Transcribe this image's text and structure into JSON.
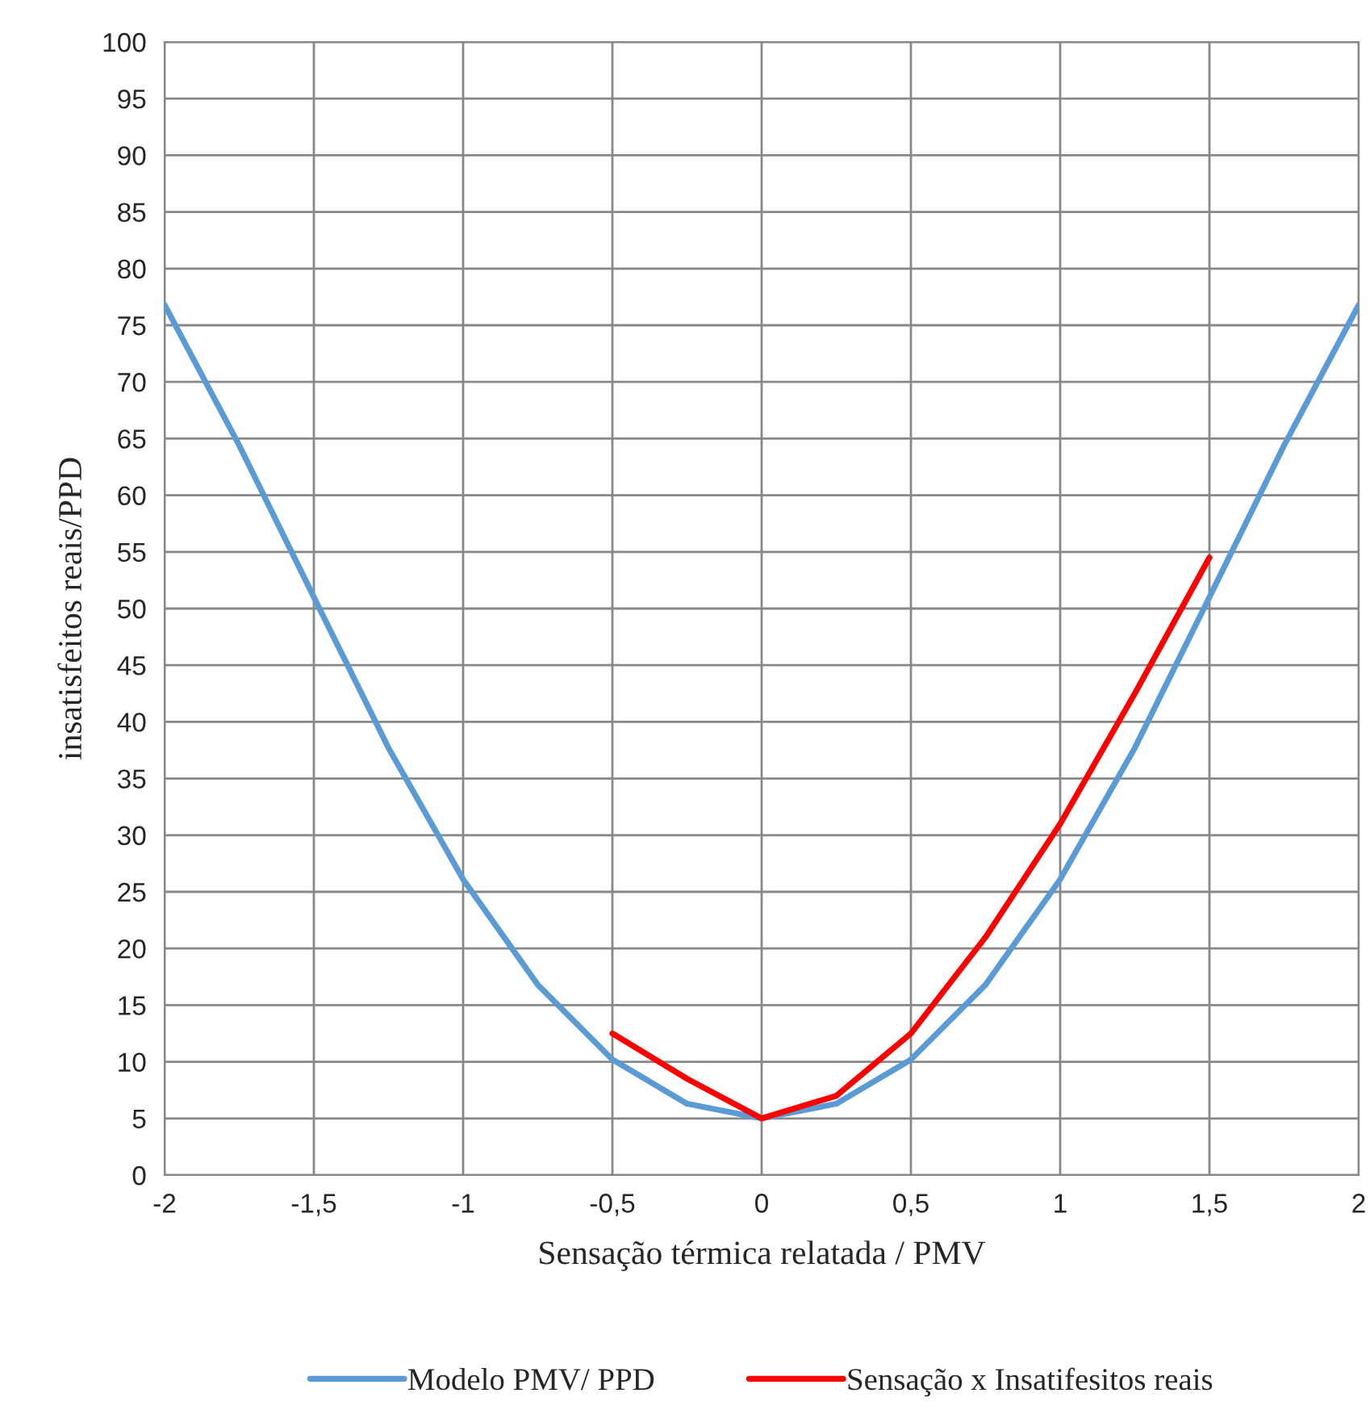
{
  "chart_data": {
    "type": "line",
    "xlabel": "Sensação térmica relatada / PMV",
    "ylabel": "insatisfeitos reais/PPD",
    "xlim": [
      -2,
      2
    ],
    "ylim": [
      0,
      100
    ],
    "xticks": [
      -2,
      {
        "value": -1.5,
        "label": "-1,5"
      },
      -1,
      {
        "value": -0.5,
        "label": "-0,5"
      },
      0,
      {
        "value": 0.5,
        "label": "0,5"
      },
      1,
      {
        "value": 1.5,
        "label": "1,5"
      },
      2
    ],
    "yticks": [
      0,
      5,
      10,
      15,
      20,
      25,
      30,
      35,
      40,
      45,
      50,
      55,
      60,
      65,
      70,
      75,
      80,
      85,
      90,
      95,
      100
    ],
    "grid": true,
    "legend": "bottom",
    "marker": "none",
    "line_style": "solid",
    "series": [
      {
        "name": "Modelo PMV/ PPD",
        "color": "#5b9bd5",
        "x": [
          -2,
          -1.75,
          -1.5,
          -1.25,
          -1,
          -0.75,
          -0.5,
          -0.25,
          0,
          0.25,
          0.5,
          0.75,
          1,
          1.25,
          1.5,
          1.75,
          2
        ],
        "values": [
          76.8,
          64.4,
          51,
          37.7,
          26.1,
          16.8,
          10.2,
          6.3,
          5,
          6.3,
          10.2,
          16.8,
          26.1,
          37.7,
          51,
          64.4,
          76.8
        ]
      },
      {
        "name": "Sensação x Insatifesitos reais",
        "color": "#ff0000",
        "x": [
          -0.5,
          -0.25,
          0,
          0.25,
          0.5,
          0.75,
          1,
          1.25,
          1.5
        ],
        "values": [
          12.5,
          8.5,
          5,
          7,
          12.5,
          21,
          31,
          42.5,
          54.5
        ]
      }
    ]
  }
}
